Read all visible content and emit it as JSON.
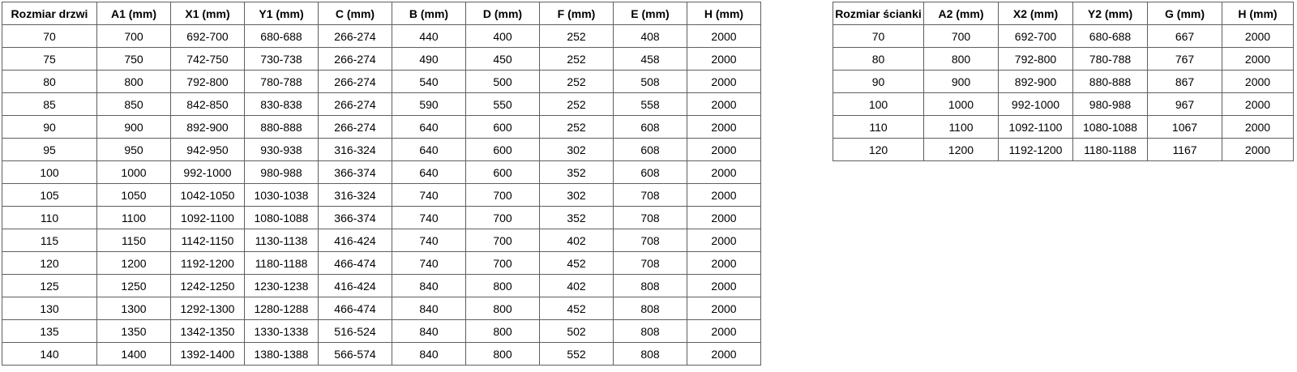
{
  "door_table": {
    "name": "Rozmiar drzwi",
    "headers": [
      "Rozmiar drzwi",
      "A1 (mm)",
      "X1 (mm)",
      "Y1 (mm)",
      "C (mm)",
      "B (mm)",
      "D (mm)",
      "F (mm)",
      "E (mm)",
      "H (mm)"
    ],
    "rows": [
      [
        "70",
        "700",
        "692-700",
        "680-688",
        "266-274",
        "440",
        "400",
        "252",
        "408",
        "2000"
      ],
      [
        "75",
        "750",
        "742-750",
        "730-738",
        "266-274",
        "490",
        "450",
        "252",
        "458",
        "2000"
      ],
      [
        "80",
        "800",
        "792-800",
        "780-788",
        "266-274",
        "540",
        "500",
        "252",
        "508",
        "2000"
      ],
      [
        "85",
        "850",
        "842-850",
        "830-838",
        "266-274",
        "590",
        "550",
        "252",
        "558",
        "2000"
      ],
      [
        "90",
        "900",
        "892-900",
        "880-888",
        "266-274",
        "640",
        "600",
        "252",
        "608",
        "2000"
      ],
      [
        "95",
        "950",
        "942-950",
        "930-938",
        "316-324",
        "640",
        "600",
        "302",
        "608",
        "2000"
      ],
      [
        "100",
        "1000",
        "992-1000",
        "980-988",
        "366-374",
        "640",
        "600",
        "352",
        "608",
        "2000"
      ],
      [
        "105",
        "1050",
        "1042-1050",
        "1030-1038",
        "316-324",
        "740",
        "700",
        "302",
        "708",
        "2000"
      ],
      [
        "110",
        "1100",
        "1092-1100",
        "1080-1088",
        "366-374",
        "740",
        "700",
        "352",
        "708",
        "2000"
      ],
      [
        "115",
        "1150",
        "1142-1150",
        "1130-1138",
        "416-424",
        "740",
        "700",
        "402",
        "708",
        "2000"
      ],
      [
        "120",
        "1200",
        "1192-1200",
        "1180-1188",
        "466-474",
        "740",
        "700",
        "452",
        "708",
        "2000"
      ],
      [
        "125",
        "1250",
        "1242-1250",
        "1230-1238",
        "416-424",
        "840",
        "800",
        "402",
        "808",
        "2000"
      ],
      [
        "130",
        "1300",
        "1292-1300",
        "1280-1288",
        "466-474",
        "840",
        "800",
        "452",
        "808",
        "2000"
      ],
      [
        "135",
        "1350",
        "1342-1350",
        "1330-1338",
        "516-524",
        "840",
        "800",
        "502",
        "808",
        "2000"
      ],
      [
        "140",
        "1400",
        "1392-1400",
        "1380-1388",
        "566-574",
        "840",
        "800",
        "552",
        "808",
        "2000"
      ]
    ]
  },
  "wall_table": {
    "name": "Rozmiar ścianki",
    "headers": [
      "Rozmiar ścianki",
      "A2 (mm)",
      "X2 (mm)",
      "Y2 (mm)",
      "G (mm)",
      "H (mm)"
    ],
    "rows": [
      [
        "70",
        "700",
        "692-700",
        "680-688",
        "667",
        "2000"
      ],
      [
        "80",
        "800",
        "792-800",
        "780-788",
        "767",
        "2000"
      ],
      [
        "90",
        "900",
        "892-900",
        "880-888",
        "867",
        "2000"
      ],
      [
        "100",
        "1000",
        "992-1000",
        "980-988",
        "967",
        "2000"
      ],
      [
        "110",
        "1100",
        "1092-1100",
        "1080-1088",
        "1067",
        "2000"
      ],
      [
        "120",
        "1200",
        "1192-1200",
        "1180-1188",
        "1167",
        "2000"
      ]
    ]
  },
  "colors": {
    "background": "#ffffff",
    "border": "#5f5f5f",
    "text": "#000000"
  }
}
